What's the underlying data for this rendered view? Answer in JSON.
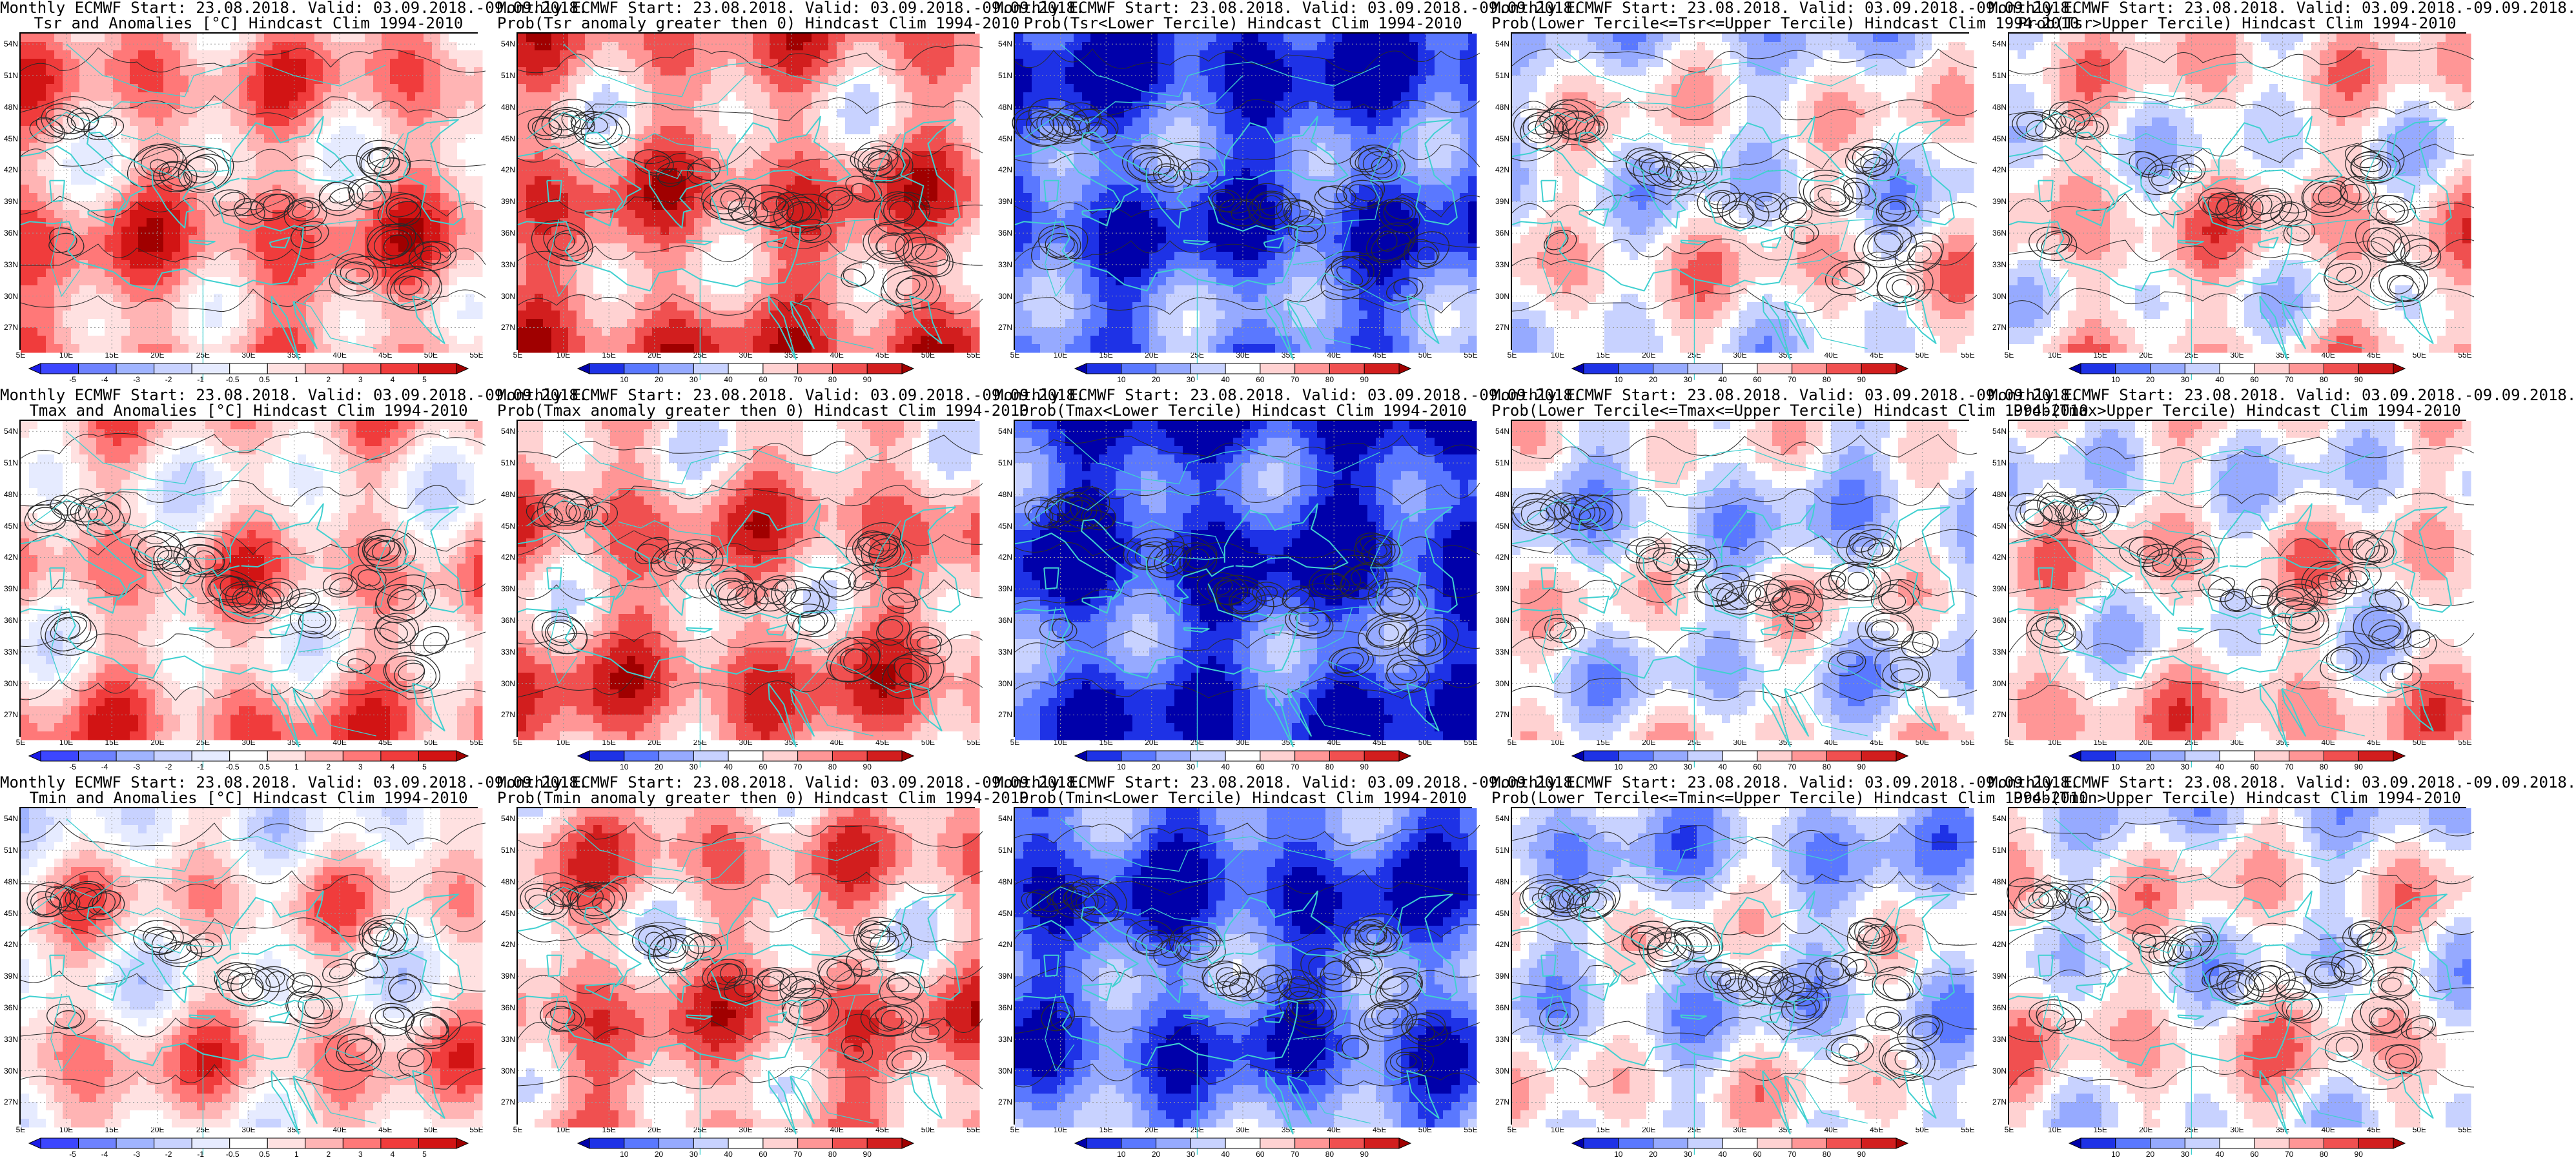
{
  "panels": [
    {
      "title1": "Monthly ECMWF Start: 23.08.2018. Valid: 03.09.2018.-09.09.2018.",
      "title2": "Tsr and Anomalies [°C] Hindcast Clim 1994-2010",
      "kind": "anom",
      "field": 0,
      "colorbar": [
        "-5",
        "-4",
        "-3",
        "-2",
        "-1",
        "-0.5",
        "0.5",
        "1",
        "2",
        "3",
        "4",
        "5"
      ]
    },
    {
      "title1": "Monthly ECMWF Start: 23.08.2018. Valid: 03.09.2018.-09.09.2018.",
      "title2": "Prob(Tsr anomaly greater then 0) Hindcast Clim 1994-2010",
      "kind": "prob",
      "field": 1,
      "colorbar": [
        "10",
        "20",
        "30",
        "40",
        "60",
        "70",
        "80",
        "90"
      ]
    },
    {
      "title1": "Monthly ECMWF Start: 23.08.2018. Valid: 03.09.2018.-09.09.2018.",
      "title2": "Prob(Tsr<Lower Tercile) Hindcast Clim 1994-2010",
      "kind": "prob",
      "field": 2,
      "colorbar": [
        "10",
        "20",
        "30",
        "40",
        "60",
        "70",
        "80",
        "90"
      ]
    },
    {
      "title1": "Monthly ECMWF Start: 23.08.2018. Valid: 03.09.2018.-09.09.2018.",
      "title2": "Prob(Lower Tercile<=Tsr<=Upper Tercile) Hindcast Clim 1994-2010",
      "kind": "prob",
      "field": 3,
      "colorbar": [
        "10",
        "20",
        "30",
        "40",
        "60",
        "70",
        "80",
        "90"
      ]
    },
    {
      "title1": "Monthly ECMWF Start: 23.08.2018. Valid: 03.09.2018.-09.09.2018.",
      "title2": "Prob(Tsr>Upper Tercile) Hindcast Clim 1994-2010",
      "kind": "prob",
      "field": 4,
      "colorbar": [
        "10",
        "20",
        "30",
        "40",
        "60",
        "70",
        "80",
        "90"
      ]
    },
    {
      "title1": "Monthly ECMWF Start: 23.08.2018. Valid: 03.09.2018.-09.09.2018.",
      "title2": "Tmax and Anomalies [°C] Hindcast Clim 1994-2010",
      "kind": "anom",
      "field": 5,
      "colorbar": [
        "-5",
        "-4",
        "-3",
        "-2",
        "-1",
        "-0.5",
        "0.5",
        "1",
        "2",
        "3",
        "4",
        "5"
      ]
    },
    {
      "title1": "Monthly ECMWF Start: 23.08.2018. Valid: 03.09.2018.-09.09.2018.",
      "title2": "Prob(Tmax anomaly greater then 0) Hindcast Clim 1994-2010",
      "kind": "prob",
      "field": 6,
      "colorbar": [
        "10",
        "20",
        "30",
        "40",
        "60",
        "70",
        "80",
        "90"
      ]
    },
    {
      "title1": "Monthly ECMWF Start: 23.08.2018. Valid: 03.09.2018.-09.09.2018.",
      "title2": "Prob(Tmax<Lower Tercile) Hindcast Clim 1994-2010",
      "kind": "prob",
      "field": 7,
      "colorbar": [
        "10",
        "20",
        "30",
        "40",
        "60",
        "70",
        "80",
        "90"
      ]
    },
    {
      "title1": "Monthly ECMWF Start: 23.08.2018. Valid: 03.09.2018.-09.09.2018.",
      "title2": "Prob(Lower Tercile<=Tmax<=Upper Tercile) Hindcast Clim 1994-2010",
      "kind": "prob",
      "field": 8,
      "colorbar": [
        "10",
        "20",
        "30",
        "40",
        "60",
        "70",
        "80",
        "90"
      ]
    },
    {
      "title1": "Monthly ECMWF Start: 23.08.2018. Valid: 03.09.2018.-09.09.2018.",
      "title2": "Prob(Tmax>Upper Tercile) Hindcast Clim 1994-2010",
      "kind": "prob",
      "field": 9,
      "colorbar": [
        "10",
        "20",
        "30",
        "40",
        "60",
        "70",
        "80",
        "90"
      ]
    },
    {
      "title1": "Monthly ECMWF Start: 23.08.2018. Valid: 03.09.2018.-09.09.2018.",
      "title2": "Tmin and Anomalies [°C] Hindcast Clim 1994-2010",
      "kind": "anom",
      "field": 10,
      "colorbar": [
        "-5",
        "-4",
        "-3",
        "-2",
        "-1",
        "-0.5",
        "0.5",
        "1",
        "2",
        "3",
        "4",
        "5"
      ]
    },
    {
      "title1": "Monthly ECMWF Start: 23.08.2018. Valid: 03.09.2018.-09.09.2018.",
      "title2": "Prob(Tmin anomaly greater then 0) Hindcast Clim 1994-2010",
      "kind": "prob",
      "field": 11,
      "colorbar": [
        "10",
        "20",
        "30",
        "40",
        "60",
        "70",
        "80",
        "90"
      ]
    },
    {
      "title1": "Monthly ECMWF Start: 23.08.2018. Valid: 03.09.2018.-09.09.2018.",
      "title2": "Prob(Tmin<Lower Tercile) Hindcast Clim 1994-2010",
      "kind": "prob",
      "field": 12,
      "colorbar": [
        "10",
        "20",
        "30",
        "40",
        "60",
        "70",
        "80",
        "90"
      ]
    },
    {
      "title1": "Monthly ECMWF Start: 23.08.2018. Valid: 03.09.2018.-09.09.2018.",
      "title2": "Prob(Lower Tercile<=Tmin<=Upper Tercile) Hindcast Clim 1994-2010",
      "kind": "prob",
      "field": 13,
      "colorbar": [
        "10",
        "20",
        "30",
        "40",
        "60",
        "70",
        "80",
        "90"
      ]
    },
    {
      "title1": "Monthly ECMWF Start: 23.08.2018. Valid: 03.09.2018.-09.09.2018.",
      "title2": "Prob(Tmin>Upper Tercile) Hindcast Clim 1994-2010",
      "kind": "prob",
      "field": 14,
      "colorbar": [
        "10",
        "20",
        "30",
        "40",
        "60",
        "70",
        "80",
        "90"
      ]
    }
  ],
  "axes": {
    "lat_labels": [
      "54N",
      "51N",
      "48N",
      "45N",
      "42N",
      "39N",
      "36N",
      "33N",
      "30N",
      "27N"
    ],
    "lon_labels": [
      "5E",
      "10E",
      "15E",
      "20E",
      "25E",
      "30E",
      "35E",
      "40E",
      "45E",
      "50E",
      "55E"
    ],
    "lat_range": [
      25,
      55
    ],
    "lon_range": [
      5,
      55
    ]
  },
  "palettes": {
    "anom": [
      "#1a1ae6",
      "#3c46ff",
      "#6e82ff",
      "#a0b4ff",
      "#c8d2ff",
      "#e6ebff",
      "#ffffff",
      "#ffe1e1",
      "#ffb4b4",
      "#ff7878",
      "#f03c3c",
      "#d21414",
      "#a00000"
    ],
    "prob": [
      "#0000aa",
      "#1e32e6",
      "#5a78ff",
      "#96aaff",
      "#c8d2ff",
      "#ffffff",
      "#ffd2d2",
      "#ff9696",
      "#f05050",
      "#d21e1e",
      "#a00000"
    ]
  },
  "colors": {
    "coast": "#40d0d0",
    "contour": "#2a2a2a"
  }
}
